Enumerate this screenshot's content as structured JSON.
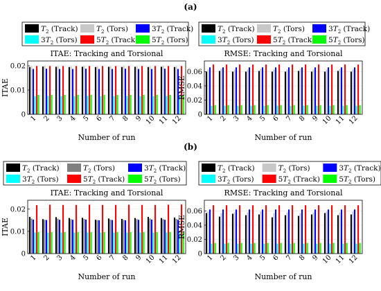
{
  "panels": [
    {
      "label": "(a)",
      "y": 0
    },
    {
      "label": "(b)",
      "y": 207
    }
  ],
  "chart_data": [
    {
      "type": "bar",
      "panel": "(a)",
      "title": "ITAE: Tracking and Torsional",
      "xlabel": "Number of run",
      "ylabel": "ITAE",
      "categories": [
        "1",
        "2",
        "3",
        "4",
        "5",
        "6",
        "7",
        "8",
        "9",
        "10",
        "11",
        "12"
      ],
      "ylim": [
        0,
        0.022
      ],
      "yticks": [
        0,
        0.01,
        0.02
      ],
      "ytick_labels": [
        "0",
        "0.01",
        "0.02"
      ],
      "grid": true,
      "legend_placement": "above",
      "series": [
        {
          "sub": "T",
          "pre": "",
          "tail": "(Track)",
          "color": "#000000",
          "values": [
            0.0195,
            0.0197,
            0.0196,
            0.0195,
            0.0196,
            0.0195,
            0.0196,
            0.0195,
            0.0196,
            0.0195,
            0.0196,
            0.0195
          ]
        },
        {
          "sub": "T",
          "pre": "",
          "tail": "(Tors)",
          "color": "#c8c8c8",
          "values": [
            0.0198,
            0.0199,
            0.0198,
            0.0198,
            0.0199,
            0.0198,
            0.0198,
            0.0199,
            0.0198,
            0.0198,
            0.0199,
            0.0198
          ]
        },
        {
          "sub": "T",
          "pre": "3",
          "tail": "(Track)",
          "color": "#0000ff",
          "values": [
            0.0187,
            0.0188,
            0.0187,
            0.0187,
            0.0188,
            0.0187,
            0.0187,
            0.0188,
            0.0187,
            0.0187,
            0.0188,
            0.0187
          ]
        },
        {
          "sub": "T",
          "pre": "3",
          "tail": "(Tors)",
          "color": "#00ffff",
          "values": [
            0.0075,
            0.0076,
            0.0075,
            0.0075,
            0.0076,
            0.0075,
            0.0075,
            0.0076,
            0.0075,
            0.0075,
            0.0076,
            0.0075
          ]
        },
        {
          "sub": "T",
          "pre": "5",
          "tail": "(Track)",
          "color": "#ff0000",
          "values": [
            0.0199,
            0.0199,
            0.0199,
            0.0199,
            0.0199,
            0.0199,
            0.0199,
            0.0199,
            0.0199,
            0.0199,
            0.0199,
            0.0199
          ]
        },
        {
          "sub": "T",
          "pre": "5",
          "tail": "(Tors)",
          "color": "#00ff00",
          "values": [
            0.008,
            0.008,
            0.008,
            0.008,
            0.008,
            0.008,
            0.008,
            0.008,
            0.008,
            0.008,
            0.008,
            0.008
          ]
        }
      ]
    },
    {
      "type": "bar",
      "panel": "(a)",
      "title": "RMSE: Tracking and Torsional",
      "xlabel": "Number of run",
      "ylabel": "RMSE",
      "categories": [
        "1",
        "2",
        "3",
        "4",
        "5",
        "6",
        "7",
        "8",
        "9",
        "10",
        "11",
        "12"
      ],
      "ylim": [
        0,
        0.075
      ],
      "yticks": [
        0,
        0.02,
        0.04,
        0.06
      ],
      "ytick_labels": [
        "0",
        "0.02",
        "0.04",
        "0.06"
      ],
      "grid": true,
      "legend_placement": "above",
      "series": [
        {
          "sub": "T",
          "pre": "",
          "tail": "(Track)",
          "color": "#000000",
          "values": [
            0.06,
            0.061,
            0.06,
            0.06,
            0.061,
            0.06,
            0.06,
            0.061,
            0.06,
            0.06,
            0.061,
            0.06
          ]
        },
        {
          "sub": "T",
          "pre": "",
          "tail": "(Tors)",
          "color": "#c8c8c8",
          "values": [
            0.063,
            0.064,
            0.063,
            0.063,
            0.064,
            0.063,
            0.063,
            0.064,
            0.063,
            0.063,
            0.064,
            0.063
          ]
        },
        {
          "sub": "T",
          "pre": "3",
          "tail": "(Track)",
          "color": "#0000ff",
          "values": [
            0.066,
            0.066,
            0.066,
            0.066,
            0.066,
            0.066,
            0.066,
            0.066,
            0.066,
            0.066,
            0.066,
            0.066
          ]
        },
        {
          "sub": "T",
          "pre": "3",
          "tail": "(Tors)",
          "color": "#00ffff",
          "values": [
            0.012,
            0.012,
            0.012,
            0.012,
            0.012,
            0.012,
            0.012,
            0.012,
            0.012,
            0.012,
            0.012,
            0.012
          ]
        },
        {
          "sub": "T",
          "pre": "5",
          "tail": "(Track)",
          "color": "#ff0000",
          "values": [
            0.07,
            0.07,
            0.07,
            0.07,
            0.07,
            0.07,
            0.07,
            0.07,
            0.07,
            0.07,
            0.07,
            0.07
          ]
        },
        {
          "sub": "T",
          "pre": "5",
          "tail": "(Tors)",
          "color": "#00ff00",
          "values": [
            0.013,
            0.013,
            0.013,
            0.013,
            0.013,
            0.013,
            0.013,
            0.013,
            0.013,
            0.013,
            0.013,
            0.013
          ]
        }
      ]
    },
    {
      "type": "bar",
      "panel": "(b)",
      "title": "ITAE: Tracking and Torsional",
      "xlabel": "Number of run",
      "ylabel": "ITAE",
      "categories": [
        "1",
        "2",
        "3",
        "4",
        "5",
        "6",
        "7",
        "8",
        "9",
        "10",
        "11",
        "12"
      ],
      "ylim": [
        0,
        0.024
      ],
      "yticks": [
        0,
        0.01,
        0.02
      ],
      "ytick_labels": [
        "0",
        "0.01",
        "0.02"
      ],
      "grid": true,
      "legend_placement": "above",
      "series": [
        {
          "sub": "T",
          "pre": "",
          "tail": "(Track)",
          "color": "#000000",
          "values": [
            0.0165,
            0.0155,
            0.0164,
            0.016,
            0.0161,
            0.0152,
            0.0158,
            0.0156,
            0.016,
            0.0165,
            0.016,
            0.0162
          ]
        },
        {
          "sub": "T",
          "pre": "",
          "tail": "(Tors)",
          "color": "#808080",
          "values": [
            0.0158,
            0.0152,
            0.0157,
            0.0155,
            0.0156,
            0.0151,
            0.0153,
            0.0152,
            0.0155,
            0.0158,
            0.0155,
            0.0156
          ]
        },
        {
          "sub": "T",
          "pre": "3",
          "tail": "(Track)",
          "color": "#0000ff",
          "values": [
            0.0153,
            0.0151,
            0.0152,
            0.0152,
            0.0153,
            0.015,
            0.0151,
            0.015,
            0.0152,
            0.0153,
            0.0152,
            0.0152
          ]
        },
        {
          "sub": "T",
          "pre": "3",
          "tail": "(Tors)",
          "color": "#00ffff",
          "values": [
            0.0095,
            0.0095,
            0.0095,
            0.0095,
            0.0095,
            0.0095,
            0.0095,
            0.0095,
            0.0095,
            0.0095,
            0.0095,
            0.0095
          ]
        },
        {
          "sub": "T",
          "pre": "5",
          "tail": "(Track)",
          "color": "#ff0000",
          "values": [
            0.0218,
            0.022,
            0.0219,
            0.0219,
            0.022,
            0.0219,
            0.0219,
            0.022,
            0.0219,
            0.0219,
            0.022,
            0.0221
          ]
        },
        {
          "sub": "T",
          "pre": "5",
          "tail": "(Tors)",
          "color": "#00ff00",
          "values": [
            0.0097,
            0.0097,
            0.0097,
            0.0097,
            0.0097,
            0.0097,
            0.0097,
            0.0097,
            0.0097,
            0.0097,
            0.0097,
            0.0097
          ]
        }
      ]
    },
    {
      "type": "bar",
      "panel": "(b)",
      "title": "RMSE: Tracking and Torsional",
      "xlabel": "Number of run",
      "ylabel": "RMSE",
      "categories": [
        "1",
        "2",
        "3",
        "4",
        "5",
        "6",
        "7",
        "8",
        "9",
        "10",
        "11",
        "12"
      ],
      "ylim": [
        0,
        0.075
      ],
      "yticks": [
        0,
        0.02,
        0.04,
        0.06
      ],
      "ytick_labels": [
        "0",
        "0.02",
        "0.04",
        "0.06"
      ],
      "grid": true,
      "legend_placement": "above",
      "series": [
        {
          "sub": "T",
          "pre": "",
          "tail": "(Track)",
          "color": "#000000",
          "values": [
            0.057,
            0.052,
            0.056,
            0.054,
            0.055,
            0.051,
            0.054,
            0.053,
            0.055,
            0.057,
            0.054,
            0.055
          ]
        },
        {
          "sub": "T",
          "pre": "",
          "tail": "(Tors)",
          "color": "#c8c8c8",
          "values": [
            0.059,
            0.057,
            0.058,
            0.058,
            0.059,
            0.057,
            0.058,
            0.057,
            0.058,
            0.059,
            0.058,
            0.059
          ]
        },
        {
          "sub": "T",
          "pre": "3",
          "tail": "(Track)",
          "color": "#0000ff",
          "values": [
            0.062,
            0.062,
            0.062,
            0.062,
            0.062,
            0.062,
            0.062,
            0.062,
            0.062,
            0.062,
            0.062,
            0.062
          ]
        },
        {
          "sub": "T",
          "pre": "3",
          "tail": "(Tors)",
          "color": "#00ffff",
          "values": [
            0.014,
            0.014,
            0.014,
            0.014,
            0.014,
            0.014,
            0.014,
            0.014,
            0.014,
            0.014,
            0.014,
            0.014
          ]
        },
        {
          "sub": "T",
          "pre": "5",
          "tail": "(Track)",
          "color": "#ff0000",
          "values": [
            0.068,
            0.068,
            0.068,
            0.068,
            0.068,
            0.068,
            0.068,
            0.068,
            0.068,
            0.068,
            0.068,
            0.068
          ]
        },
        {
          "sub": "T",
          "pre": "5",
          "tail": "(Tors)",
          "color": "#00ff00",
          "values": [
            0.015,
            0.015,
            0.015,
            0.015,
            0.015,
            0.015,
            0.015,
            0.015,
            0.015,
            0.015,
            0.015,
            0.015
          ]
        }
      ]
    }
  ]
}
